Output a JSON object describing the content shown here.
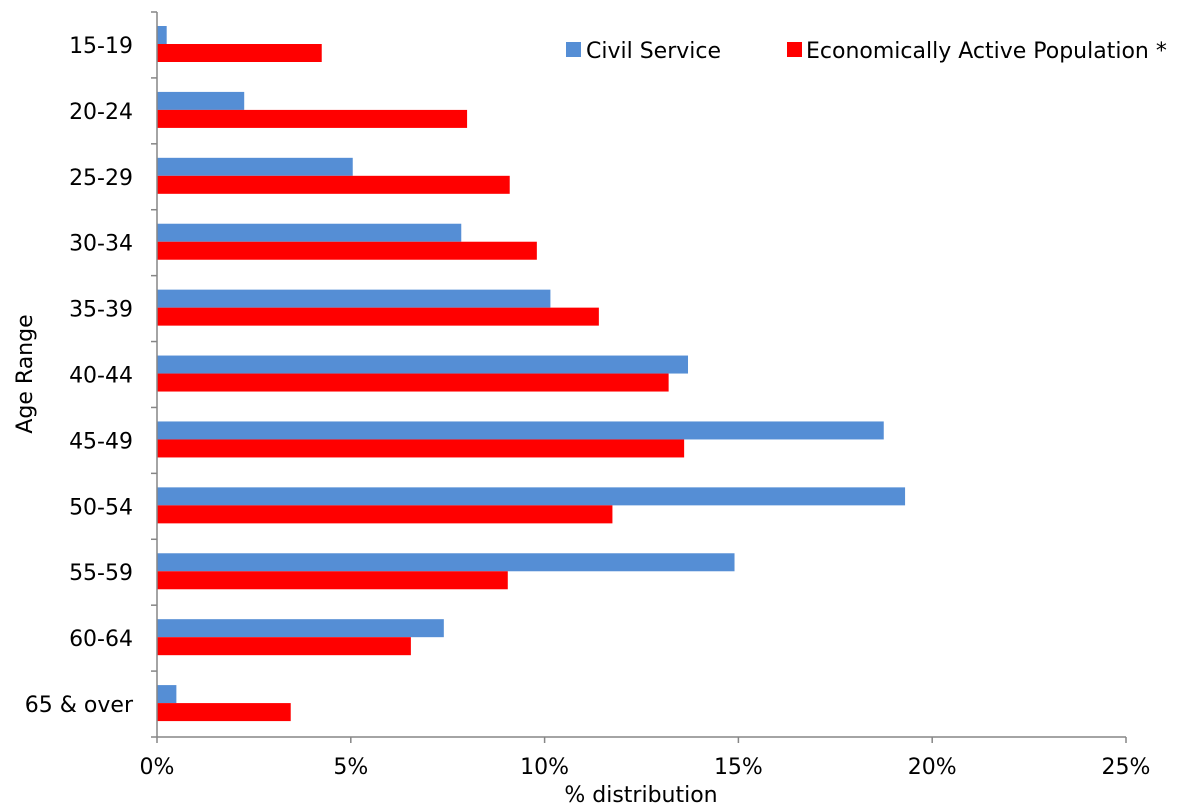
{
  "chart_data": {
    "type": "bar",
    "orientation": "horizontal",
    "title": "",
    "xlabel": "% distribution",
    "ylabel": "Age Range",
    "xlim": [
      0,
      25
    ],
    "x_ticks": [
      "0%",
      "5%",
      "10%",
      "15%",
      "20%",
      "25%"
    ],
    "categories": [
      "15-19",
      "20-24",
      "25-29",
      "30-34",
      "35-39",
      "40-44",
      "45-49",
      "50-54",
      "55-59",
      "60-64",
      "65 & over"
    ],
    "series": [
      {
        "name": "Civil Service",
        "color": "#558ED5",
        "values": [
          0.25,
          2.25,
          5.05,
          7.85,
          10.15,
          13.7,
          18.75,
          19.3,
          14.9,
          7.4,
          0.5
        ]
      },
      {
        "name": "Economically Active Population *",
        "color": "#FF0000",
        "values": [
          4.25,
          8.0,
          9.1,
          9.8,
          11.4,
          13.2,
          13.6,
          11.75,
          9.05,
          6.55,
          3.45
        ]
      }
    ],
    "grid": false,
    "legend_position": "top-right"
  }
}
